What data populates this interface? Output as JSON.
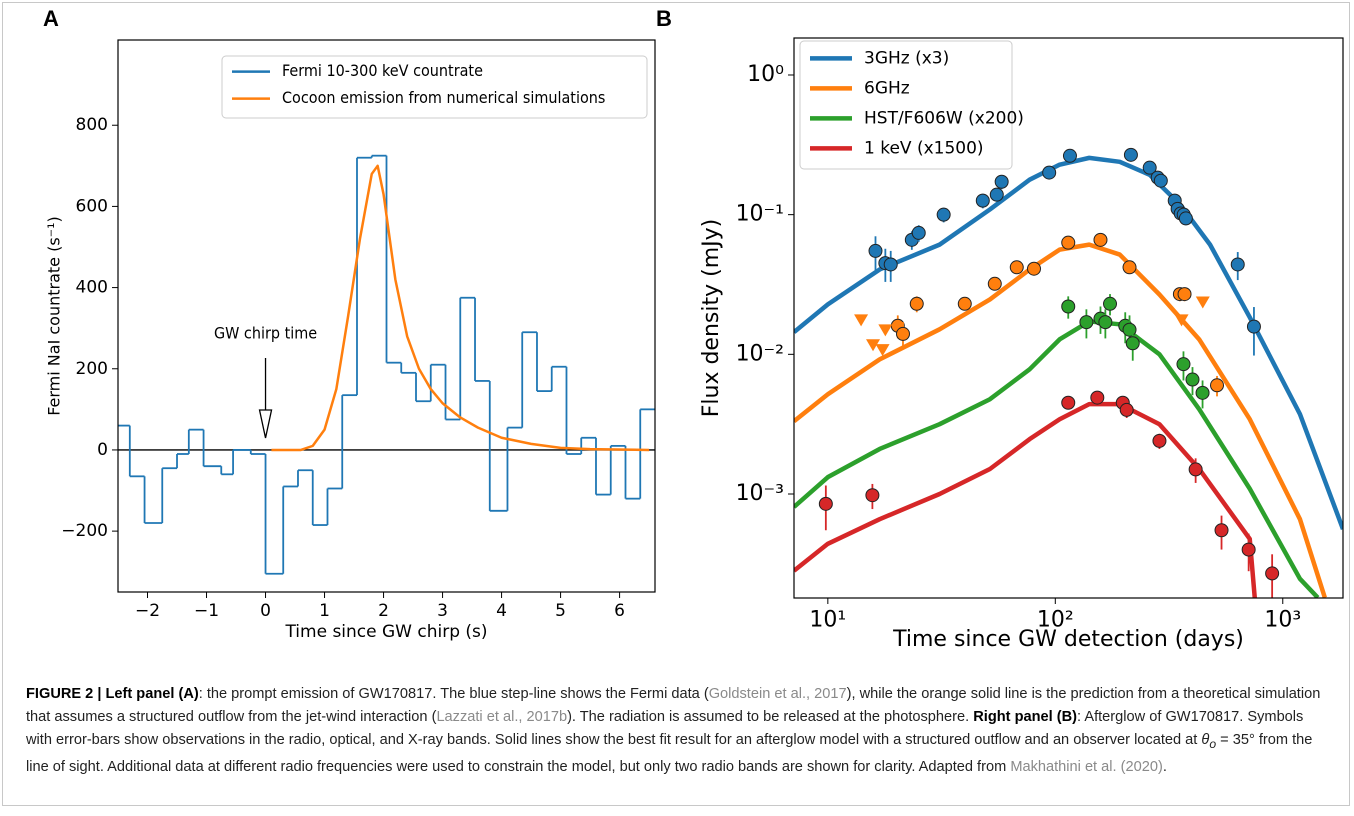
{
  "chart_data": [
    {
      "type": "line",
      "panel_label": "A",
      "xlabel": "Time since GW chirp (s)",
      "ylabel": "Fermi NaI countrate (s⁻¹)",
      "xlim": [
        -2.5,
        6.6
      ],
      "ylim": [
        -350,
        1010
      ],
      "xticks": [
        {
          "value": -2,
          "label": "−2"
        },
        {
          "value": -1,
          "label": "−1"
        },
        0,
        1,
        2,
        3,
        4,
        5,
        6
      ],
      "yticks": [
        {
          "value": -200,
          "label": "−200"
        },
        0,
        200,
        400,
        600,
        800
      ],
      "hline": 0,
      "legend": "upper right",
      "annotation": {
        "text": "GW chirp time",
        "x": 0
      },
      "series": [
        {
          "name": "Fermi 10-300 keV countrate",
          "color": "#1f77b4",
          "bins": [
            -2.5,
            -2.3,
            -2.05,
            -1.75,
            -1.5,
            -1.3,
            -1.05,
            -0.75,
            -0.55,
            -0.25,
            0,
            0.3,
            0.55,
            0.8,
            1.05,
            1.3,
            1.55,
            1.8,
            2.05,
            2.3,
            2.55,
            2.8,
            3.05,
            3.3,
            3.55,
            3.8,
            4.1,
            4.35,
            4.6,
            4.85,
            5.1,
            5.35,
            5.6,
            5.85,
            6.1,
            6.35,
            6.6
          ],
          "values": [
            60,
            -65,
            -180,
            -45,
            -10,
            50,
            -40,
            -60,
            0,
            -10,
            -305,
            -90,
            -50,
            -185,
            -95,
            135,
            720,
            725,
            215,
            190,
            120,
            210,
            75,
            375,
            170,
            -150,
            55,
            290,
            145,
            205,
            -10,
            30,
            -110,
            10,
            -120,
            100
          ]
        },
        {
          "name": "Cocoon emission from numerical simulations",
          "color": "#ff7f0e",
          "x": [
            0.1,
            0.6,
            0.8,
            1.0,
            1.2,
            1.4,
            1.6,
            1.8,
            1.9,
            2.0,
            2.2,
            2.4,
            2.6,
            2.8,
            3.0,
            3.3,
            3.6,
            4.0,
            4.5,
            5.0,
            5.5,
            6.5
          ],
          "values": [
            0,
            0,
            10,
            50,
            150,
            330,
            520,
            680,
            700,
            630,
            420,
            280,
            200,
            150,
            115,
            80,
            55,
            30,
            15,
            5,
            2,
            0
          ]
        }
      ]
    },
    {
      "type": "line",
      "panel_label": "B",
      "xlabel": "Time since GW detection (days)",
      "ylabel": "Flux density (mJy)",
      "xscale": "log",
      "yscale": "log",
      "xlim": [
        7.1,
        1840
      ],
      "ylim": [
        0.00018,
        1.84
      ],
      "xticks": [
        {
          "value": 10,
          "label": "10¹"
        },
        {
          "value": 100,
          "label": "10²"
        },
        {
          "value": 1000,
          "label": "10³"
        }
      ],
      "yticks": [
        {
          "value": 0.001,
          "label": "10⁻³"
        },
        {
          "value": 0.01,
          "label": "10⁻²"
        },
        {
          "value": 0.1,
          "label": "10⁻¹"
        },
        {
          "value": 1,
          "label": "10⁰"
        }
      ],
      "legend": "upper left",
      "series": [
        {
          "name": "3GHz (x3)",
          "color": "#1f77b4",
          "x": [
            7.1,
            10,
            16.9,
            31,
            51.6,
            77.1,
            104.5,
            141,
            192,
            260,
            354,
            479,
            716,
            1190,
            1840
          ],
          "values": [
            0.0144,
            0.0228,
            0.0405,
            0.061,
            0.109,
            0.178,
            0.228,
            0.255,
            0.239,
            0.193,
            0.118,
            0.061,
            0.0184,
            0.00373,
            0.00056
          ],
          "points": {
            "x": [
              16.2,
              17.9,
              18.9,
              23.4,
              25.1,
              32.3,
              48.0,
              55.3,
              58.1,
              94,
              116,
              215,
              260,
              282,
              291,
              335,
              345,
              356,
              367,
              375,
              634,
              747
            ],
            "values": [
              0.055,
              0.045,
              0.044,
              0.066,
              0.074,
              0.1,
              0.126,
              0.139,
              0.172,
              0.2,
              0.264,
              0.268,
              0.217,
              0.184,
              0.175,
              0.126,
              0.11,
              0.102,
              0.1,
              0.094,
              0.044,
              0.0158
            ],
            "errors": [
              0.015,
              0.012,
              0.011,
              0.01,
              0.01,
              0.012,
              0.015,
              0.015,
              0.02,
              0.02,
              0.02,
              0.025,
              0.02,
              0.015,
              0.015,
              0.012,
              0.01,
              0.01,
              0.01,
              0.01,
              0.01,
              0.006
            ]
          }
        },
        {
          "name": "6GHz",
          "color": "#ff7f0e",
          "x": [
            7.1,
            10,
            16.9,
            31,
            51.6,
            77.1,
            104.5,
            141,
            192,
            287,
            429,
            716,
            1190,
            1531
          ],
          "values": [
            0.00332,
            0.00518,
            0.0092,
            0.0151,
            0.0247,
            0.0405,
            0.0562,
            0.061,
            0.0518,
            0.0268,
            0.0128,
            0.00343,
            0.00066,
            0.000181
          ],
          "points": {
            "x": [
              20.3,
              21.4,
              24.6,
              40.0,
              54.2,
              67.7,
              80.6,
              114,
              158,
              212,
              353,
              370,
              514
            ],
            "values": [
              0.016,
              0.014,
              0.023,
              0.023,
              0.032,
              0.042,
              0.041,
              0.063,
              0.066,
              0.042,
              0.027,
              0.027,
              0.006
            ],
            "errors": [
              0.003,
              0.003,
              0.003,
              0.002,
              0.003,
              0.004,
              0.004,
              0.005,
              0.005,
              0.004,
              0.003,
              0.003,
              0.001
            ]
          },
          "upper_limits": {
            "x": [
              14.0,
              15.8,
              17.4,
              17.9,
              359,
              445
            ],
            "values": [
              0.0178,
              0.0118,
              0.0109,
              0.0151,
              0.0178,
              0.0239
            ]
          }
        },
        {
          "name": "HST/F606W (x200)",
          "color": "#2ca02c",
          "x": [
            7.1,
            10,
            16.9,
            31,
            51.6,
            77.1,
            104.5,
            141,
            192,
            287,
            429,
            716,
            1190,
            1426
          ],
          "values": [
            0.000807,
            0.00132,
            0.0021,
            0.00316,
            0.00477,
            0.00781,
            0.0128,
            0.0172,
            0.0164,
            0.01,
            0.00405,
            0.00109,
            0.000247,
            0.000181
          ],
          "points": {
            "x": [
              114,
              137,
              158,
              166,
              174,
              203,
              212,
              219,
              366,
              401,
              444
            ],
            "values": [
              0.022,
              0.017,
              0.018,
              0.017,
              0.023,
              0.016,
              0.015,
              0.012,
              0.0085,
              0.0066,
              0.0053
            ],
            "errors": [
              0.004,
              0.004,
              0.004,
              0.004,
              0.004,
              0.004,
              0.004,
              0.003,
              0.002,
              0.0015,
              0.0012
            ]
          }
        },
        {
          "name": "1 keV (x1500)",
          "color": "#d62728",
          "x": [
            7.1,
            10,
            16.9,
            31,
            51.6,
            77.1,
            104.5,
            141,
            192,
            287,
            429,
            716,
            753
          ],
          "values": [
            0.000282,
            0.00044,
            0.00066,
            0.001,
            0.00151,
            0.00247,
            0.00343,
            0.0044,
            0.0044,
            0.00316,
            0.00151,
            0.000477,
            0.000181
          ],
          "points": {
            "x": [
              9.8,
              15.7,
              114,
              153,
              198,
              206,
              287,
              414,
              538,
              708,
              898
            ],
            "values": [
              0.00085,
              0.00098,
              0.0045,
              0.0049,
              0.0045,
              0.004,
              0.0024,
              0.0015,
              0.00055,
              0.0004,
              0.00027
            ],
            "errors": [
              0.0003,
              0.0002,
              0.0004,
              0.0005,
              0.0005,
              0.0005,
              0.0003,
              0.0003,
              0.00015,
              0.00012,
              0.0001
            ]
          }
        }
      ]
    }
  ],
  "caption": [
    "FIGURE 2 | Left panel (A)",
    ": the prompt emission of GW170817. The blue step-line shows the Fermi data (",
    "Goldstein et al., 2017",
    "), while the orange solid line is the prediction from a theoretical simulation that assumes a structured outflow from the jet-wind interaction (",
    "Lazzati et al., 2017b",
    "). The radiation is assumed to be released at the photosphere. ",
    "Right panel (B)",
    ": Afterglow of GW170817. Symbols with error-bars show observations in the radio, optical, and X-ray bands. Solid lines show the best fit result for an afterglow model with a structured outflow and an observer located at ",
    "θ",
    "o",
    " = 35° from the line of sight. Additional data at different radio frequencies were used to constrain the model, but only two radio bands are shown for clarity. Adapted from ",
    "Makhathini et al. (2020)",
    "."
  ]
}
